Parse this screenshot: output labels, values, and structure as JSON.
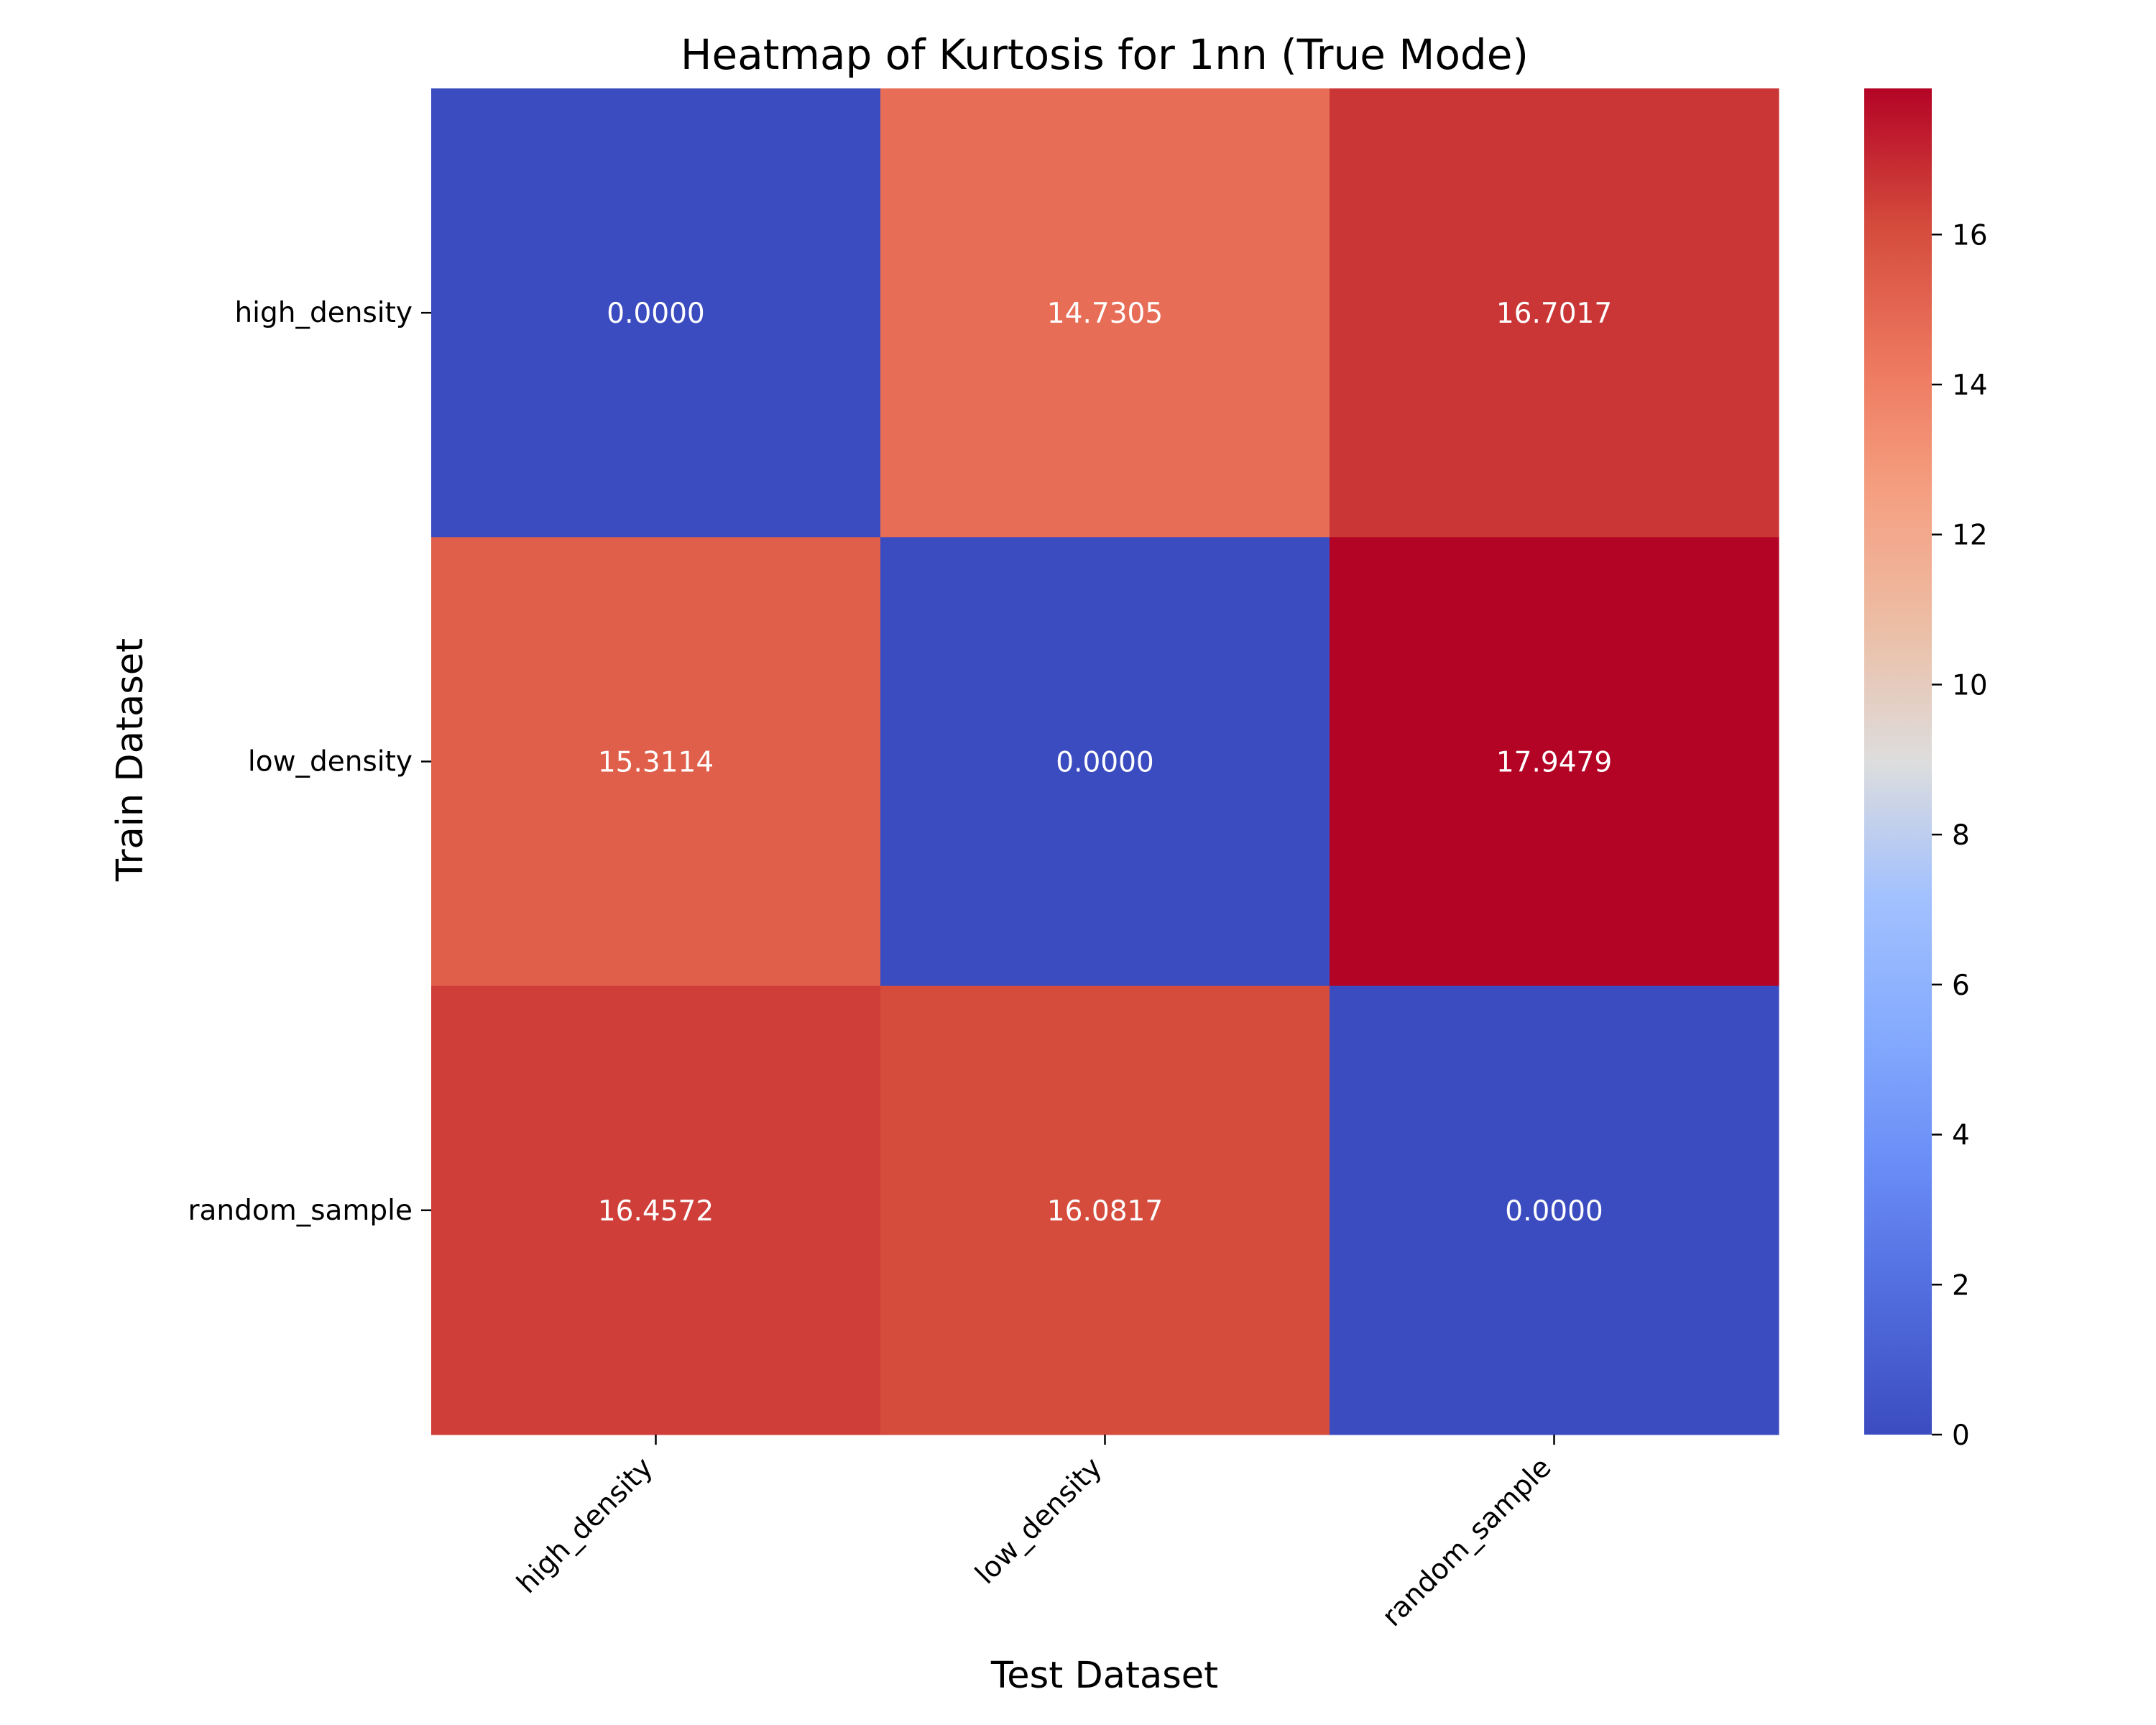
{
  "chart_data": {
    "type": "heatmap",
    "title": "Heatmap of Kurtosis for 1nn (True Mode)",
    "xlabel": "Test Dataset",
    "ylabel": "Train Dataset",
    "x_categories": [
      "high_density",
      "low_density",
      "random_sample"
    ],
    "y_categories": [
      "high_density",
      "low_density",
      "random_sample"
    ],
    "values": [
      [
        0.0,
        14.7305,
        16.7017
      ],
      [
        15.3114,
        0.0,
        17.9479
      ],
      [
        16.4572,
        16.0817,
        0.0
      ]
    ],
    "cell_labels": [
      [
        "0.0000",
        "14.7305",
        "16.7017"
      ],
      [
        "15.3114",
        "0.0000",
        "17.9479"
      ],
      [
        "16.4572",
        "16.0817",
        "0.0000"
      ]
    ],
    "colormap": "coolwarm",
    "vmin": 0,
    "vmax": 17.9479,
    "colorbar_ticks": [
      0,
      2,
      4,
      6,
      8,
      10,
      12,
      14,
      16
    ],
    "colorbar_tick_labels": [
      "0",
      "2",
      "4",
      "6",
      "8",
      "10",
      "12",
      "14",
      "16"
    ],
    "grid": false,
    "colors": {
      "cold": "#3b4cc0",
      "neutral": "#dddddd",
      "hot": "#b40426",
      "text_on_cell": "#ffffff"
    }
  }
}
